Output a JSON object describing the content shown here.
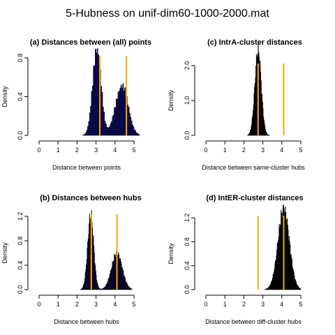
{
  "figure": {
    "title": "5-Hubness on unif-dim60-1000-2000.mat"
  },
  "chart_data": [
    {
      "type": "histogram",
      "title": "(a) Distances between (all) points",
      "xlabel": "Distance between points",
      "ylabel": "Density",
      "xlim": [
        0,
        5
      ],
      "ylim": [
        0,
        0.95
      ],
      "xticks": [
        "0",
        "1",
        "2",
        "3",
        "4",
        "5"
      ],
      "yticks": [
        "0.0",
        "0.4",
        "0.8"
      ],
      "ytick_values": [
        0,
        0.4,
        0.8
      ],
      "bin_width": 0.05,
      "color": "#0d0d6e",
      "vlines": [
        3.2,
        4.6
      ],
      "vline_color": "#ffa500",
      "peaks": [
        {
          "mu": 3.05,
          "sd": 0.22,
          "a": 0.92
        },
        {
          "mu": 4.35,
          "sd": 0.33,
          "a": 0.52
        }
      ],
      "range": [
        2.0,
        5.3
      ]
    },
    {
      "type": "histogram",
      "title": "(c) IntrA-cluster distances",
      "xlabel": "Distance between same-cluster hubs",
      "ylabel": "Density",
      "xlim": [
        0,
        5
      ],
      "ylim": [
        0,
        2.6
      ],
      "xticks": [
        "0",
        "1",
        "2",
        "3",
        "4",
        "5"
      ],
      "yticks": [
        "0.0",
        "1.0",
        "2.0"
      ],
      "ytick_values": [
        0,
        1.0,
        2.0
      ],
      "bin_width": 0.025,
      "color": "#000000",
      "vlines": [
        2.75,
        4.1
      ],
      "vline_color": "#ffa500",
      "peaks": [
        {
          "mu": 2.75,
          "sd": 0.17,
          "a": 2.45
        }
      ],
      "range": [
        2.2,
        3.4
      ]
    },
    {
      "type": "histogram",
      "title": "(b) Distances between hubs",
      "xlabel": "Distance between hubs",
      "ylabel": "Density",
      "xlim": [
        0,
        5
      ],
      "ylim": [
        0,
        1.35
      ],
      "xticks": [
        "0",
        "1",
        "2",
        "3",
        "4",
        "5"
      ],
      "yticks": [
        "0.0",
        "0.4",
        "0.8",
        "1.2"
      ],
      "ytick_values": [
        0,
        0.4,
        0.8,
        1.2
      ],
      "bin_width": 0.025,
      "color": "#0d0d6e",
      "vlines": [
        2.75,
        4.1
      ],
      "vline_color": "#ffa500",
      "peaks": [
        {
          "mu": 2.72,
          "sd": 0.16,
          "a": 1.22
        },
        {
          "mu": 4.1,
          "sd": 0.28,
          "a": 0.6
        }
      ],
      "range": [
        2.1,
        4.9
      ]
    },
    {
      "type": "histogram",
      "title": "(d) IntER-cluster distances",
      "xlabel": "Distance between diff-cluster hubs",
      "ylabel": "Density",
      "xlim": [
        0,
        5
      ],
      "ylim": [
        0,
        1.45
      ],
      "xticks": [
        "0",
        "1",
        "2",
        "3",
        "4",
        "5"
      ],
      "yticks": [
        "0.0",
        "0.4",
        "0.8",
        "1.2"
      ],
      "ytick_values": [
        0,
        0.4,
        0.8,
        1.2
      ],
      "bin_width": 0.025,
      "color": "#000000",
      "vlines": [
        2.75,
        4.1
      ],
      "vline_color": "#ffa500",
      "peaks": [
        {
          "mu": 4.1,
          "sd": 0.3,
          "a": 1.35
        }
      ],
      "range": [
        3.1,
        5.0
      ]
    }
  ]
}
